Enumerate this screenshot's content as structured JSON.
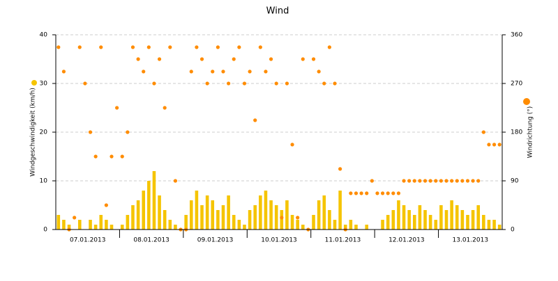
{
  "chart_data": {
    "type": "combo",
    "title": "Wind",
    "x": [
      "07.01.2013",
      "07.01.2013",
      "07.01.2013",
      "07.01.2013",
      "07.01.2013",
      "07.01.2013",
      "07.01.2013",
      "07.01.2013",
      "07.01.2013",
      "07.01.2013",
      "07.01.2013",
      "07.01.2013",
      "08.01.2013",
      "08.01.2013",
      "08.01.2013",
      "08.01.2013",
      "08.01.2013",
      "08.01.2013",
      "08.01.2013",
      "08.01.2013",
      "08.01.2013",
      "08.01.2013",
      "08.01.2013",
      "08.01.2013",
      "09.01.2013",
      "09.01.2013",
      "09.01.2013",
      "09.01.2013",
      "09.01.2013",
      "09.01.2013",
      "09.01.2013",
      "09.01.2013",
      "09.01.2013",
      "09.01.2013",
      "09.01.2013",
      "09.01.2013",
      "10.01.2013",
      "10.01.2013",
      "10.01.2013",
      "10.01.2013",
      "10.01.2013",
      "10.01.2013",
      "10.01.2013",
      "10.01.2013",
      "10.01.2013",
      "10.01.2013",
      "10.01.2013",
      "10.01.2013",
      "11.01.2013",
      "11.01.2013",
      "11.01.2013",
      "11.01.2013",
      "11.01.2013",
      "11.01.2013",
      "11.01.2013",
      "11.01.2013",
      "11.01.2013",
      "11.01.2013",
      "11.01.2013",
      "11.01.2013",
      "12.01.2013",
      "12.01.2013",
      "12.01.2013",
      "12.01.2013",
      "12.01.2013",
      "12.01.2013",
      "12.01.2013",
      "12.01.2013",
      "12.01.2013",
      "12.01.2013",
      "12.01.2013",
      "12.01.2013",
      "13.01.2013",
      "13.01.2013",
      "13.01.2013",
      "13.01.2013",
      "13.01.2013",
      "13.01.2013",
      "13.01.2013",
      "13.01.2013",
      "13.01.2013",
      "13.01.2013",
      "13.01.2013",
      "13.01.2013"
    ],
    "series": [
      {
        "name": "Windgeschwindigkeit (km/h)",
        "type": "bar",
        "color": "#f5c400",
        "values": [
          3,
          2,
          1,
          0,
          2,
          0,
          2,
          1,
          3,
          2,
          1,
          0,
          1,
          3,
          5,
          6,
          8,
          10,
          12,
          7,
          4,
          2,
          1,
          0,
          3,
          6,
          8,
          5,
          7,
          6,
          4,
          5,
          7,
          3,
          2,
          1,
          4,
          5,
          7,
          8,
          6,
          5,
          4,
          6,
          3,
          2,
          1,
          0,
          3,
          6,
          7,
          4,
          2,
          8,
          1,
          2,
          1,
          0,
          1,
          0,
          0,
          2,
          3,
          4,
          6,
          5,
          4,
          3,
          5,
          4,
          3,
          2,
          5,
          4,
          6,
          5,
          4,
          3,
          4,
          5,
          3,
          2,
          2,
          1
        ]
      },
      {
        "name": "Windrichtung (°)",
        "type": "scatter",
        "axis": "y2",
        "color": "#ff8c00",
        "values": [
          337,
          292,
          0,
          22,
          337,
          270,
          180,
          135,
          337,
          45,
          135,
          225,
          135,
          180,
          337,
          315,
          292,
          337,
          270,
          315,
          225,
          337,
          90,
          0,
          0,
          292,
          337,
          315,
          270,
          292,
          337,
          292,
          270,
          315,
          337,
          270,
          292,
          202,
          337,
          292,
          315,
          270,
          22,
          270,
          157,
          22,
          315,
          0,
          315,
          292,
          270,
          337,
          270,
          112,
          0,
          67,
          67,
          67,
          67,
          90,
          67,
          67,
          67,
          67,
          67,
          90,
          90,
          90,
          90,
          90,
          90,
          90,
          90,
          90,
          90,
          90,
          90,
          90,
          90,
          90,
          180,
          157,
          157,
          157
        ]
      }
    ],
    "ylim": [
      0,
      40
    ],
    "yticks": [
      0,
      10,
      20,
      30,
      40
    ],
    "y2lim": [
      0,
      360
    ],
    "y2ticks": [
      0,
      90,
      180,
      270,
      360
    ],
    "grid": true
  }
}
